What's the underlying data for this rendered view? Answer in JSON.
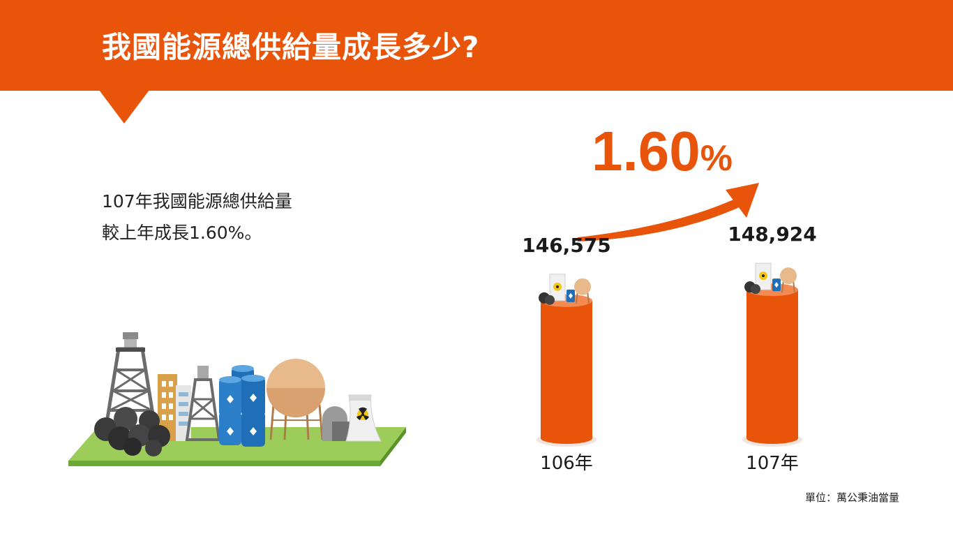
{
  "header": {
    "title": "我國能源總供給量成長多少?",
    "color": "#e9540b"
  },
  "description": {
    "line1": "107年我國能源總供給量",
    "line2": "較上年成長1.60%。"
  },
  "growth": {
    "number": "1.60",
    "unit": "%"
  },
  "unit_note": "單位：萬公秉油當量",
  "illustration": {
    "icons": [
      "oil-derrick-icon",
      "coal-pile-icon",
      "building-icon",
      "oil-barrels-icon",
      "gas-tank-icon",
      "nuclear-plant-icon",
      "ground-platform-icon"
    ]
  },
  "chart_data": {
    "type": "bar",
    "categories": [
      "106年",
      "107年"
    ],
    "values": [
      146575,
      148924
    ],
    "value_labels": [
      "146,575",
      "148,924"
    ],
    "title": "",
    "xlabel": "",
    "ylabel": "",
    "ylim": [
      0,
      160000
    ],
    "color": "#e9540b",
    "grid": false,
    "legend": "none"
  }
}
